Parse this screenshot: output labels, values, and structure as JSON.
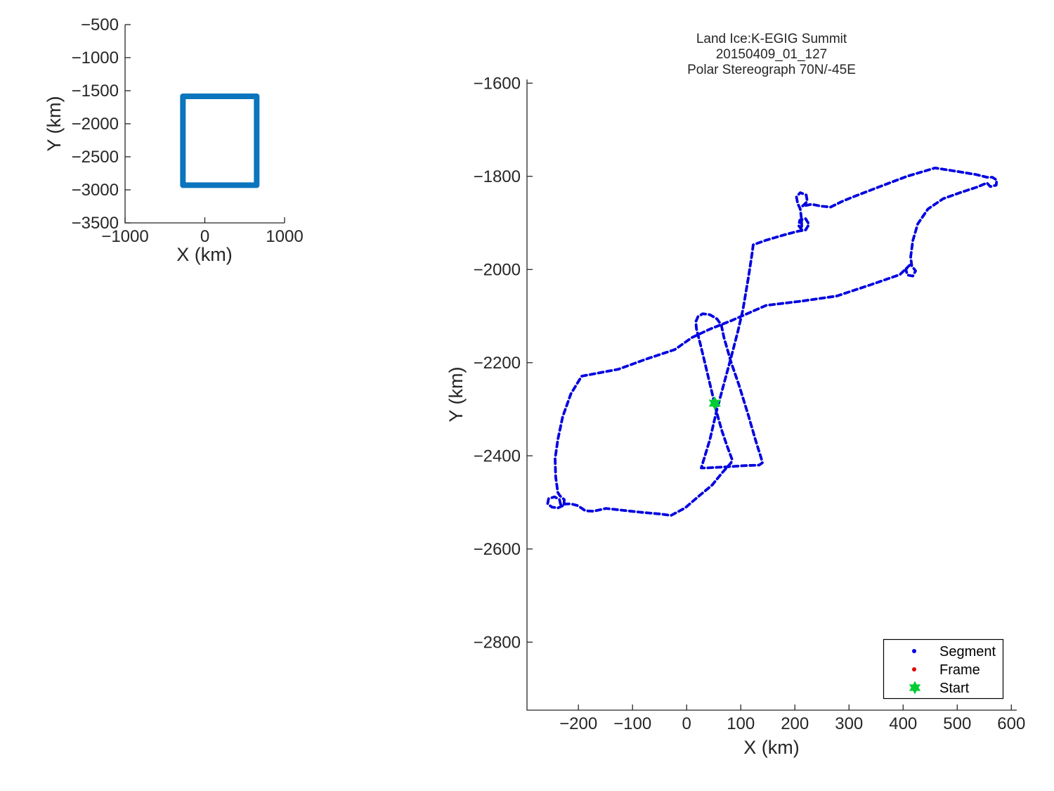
{
  "legend": {
    "position": "lower-right",
    "items": [
      {
        "label": "Segment",
        "marker": "dot",
        "color": "#0000E0"
      },
      {
        "label": "Frame",
        "marker": "dot",
        "color": "#E00000"
      },
      {
        "label": "Start",
        "marker": "hexagram",
        "color": "#00CC33"
      }
    ]
  },
  "chart_data": [
    {
      "id": "overview-map",
      "type": "line",
      "title": "",
      "xlabel": "X (km)",
      "ylabel": "Y (km)",
      "xlim": [
        -1000,
        1000
      ],
      "ylim": [
        -3500,
        -500
      ],
      "x_ticks": [
        -1000,
        0,
        1000
      ],
      "y_ticks": [
        -500,
        -1000,
        -1500,
        -2000,
        -2500,
        -3000,
        -3500
      ],
      "grid": false,
      "series": [
        {
          "name": "coverage-box",
          "color": "#0b75bd",
          "line_width": 8,
          "style": "solid",
          "closed": true,
          "points": [
            [
              -275,
              -1585
            ],
            [
              650,
              -1585
            ],
            [
              650,
              -2930
            ],
            [
              -275,
              -2930
            ]
          ]
        }
      ]
    },
    {
      "id": "flight-track",
      "type": "line",
      "title_lines": [
        "Land Ice:K-EGIG Summit",
        "20150409_01_127",
        "Polar Stereograph 70N/-45E"
      ],
      "xlabel": "X (km)",
      "ylabel": "Y (km)",
      "xlim": [
        -295,
        610
      ],
      "ylim": [
        -2946,
        -1592
      ],
      "x_ticks": [
        -200,
        -100,
        0,
        100,
        200,
        300,
        400,
        500,
        600
      ],
      "y_ticks": [
        -1600,
        -1800,
        -2000,
        -2200,
        -2400,
        -2600,
        -2800
      ],
      "grid": false,
      "series": [
        {
          "name": "Segment",
          "color": "#0000E0",
          "line_width": 3.8,
          "style": "dashed",
          "closed": false,
          "points": [
            [
              55,
              -2305
            ],
            [
              46,
              -2260
            ],
            [
              35,
              -2207
            ],
            [
              25,
              -2159
            ],
            [
              18,
              -2127
            ],
            [
              17,
              -2112
            ],
            [
              21,
              -2101
            ],
            [
              30,
              -2095
            ],
            [
              43,
              -2097
            ],
            [
              56,
              -2106
            ],
            [
              64,
              -2119
            ],
            [
              69,
              -2146
            ],
            [
              82,
              -2199
            ],
            [
              97,
              -2249
            ],
            [
              114,
              -2313
            ],
            [
              127,
              -2365
            ],
            [
              138,
              -2406
            ],
            [
              140,
              -2415
            ],
            [
              134,
              -2420
            ],
            [
              108,
              -2421
            ],
            [
              69,
              -2424
            ],
            [
              36,
              -2426
            ],
            [
              27,
              -2426
            ],
            [
              43,
              -2365
            ],
            [
              55,
              -2305
            ],
            [
              69,
              -2245
            ],
            [
              82,
              -2189
            ],
            [
              95,
              -2131
            ],
            [
              104,
              -2086
            ],
            [
              114,
              -2018
            ],
            [
              121,
              -1965
            ],
            [
              123,
              -1947
            ],
            [
              147,
              -1937
            ],
            [
              179,
              -1926
            ],
            [
              205,
              -1918
            ],
            [
              220,
              -1915
            ],
            [
              226,
              -1903
            ],
            [
              220,
              -1891
            ],
            [
              209,
              -1894
            ],
            [
              207,
              -1906
            ],
            [
              213,
              -1915
            ],
            [
              212,
              -1890
            ],
            [
              210,
              -1870
            ],
            [
              205,
              -1858
            ],
            [
              203,
              -1844
            ],
            [
              210,
              -1835
            ],
            [
              221,
              -1840
            ],
            [
              223,
              -1854
            ],
            [
              214,
              -1864
            ],
            [
              231,
              -1860
            ],
            [
              248,
              -1864
            ],
            [
              266,
              -1866
            ],
            [
              287,
              -1854
            ],
            [
              308,
              -1844
            ],
            [
              355,
              -1823
            ],
            [
              407,
              -1800
            ],
            [
              459,
              -1782
            ],
            [
              497,
              -1789
            ],
            [
              534,
              -1796
            ],
            [
              555,
              -1802
            ],
            [
              565,
              -1802
            ],
            [
              573,
              -1808
            ],
            [
              572,
              -1819
            ],
            [
              561,
              -1822
            ],
            [
              555,
              -1814
            ],
            [
              537,
              -1823
            ],
            [
              508,
              -1834
            ],
            [
              474,
              -1848
            ],
            [
              446,
              -1870
            ],
            [
              427,
              -1902
            ],
            [
              418,
              -1938
            ],
            [
              414,
              -1973
            ],
            [
              416,
              -1992
            ],
            [
              423,
              -2003
            ],
            [
              418,
              -2014
            ],
            [
              408,
              -2012
            ],
            [
              405,
              -2000
            ],
            [
              412,
              -1991
            ],
            [
              394,
              -2011
            ],
            [
              342,
              -2032
            ],
            [
              277,
              -2057
            ],
            [
              212,
              -2068
            ],
            [
              147,
              -2077
            ],
            [
              82,
              -2110
            ],
            [
              43,
              -2128
            ],
            [
              10,
              -2146
            ],
            [
              -22,
              -2172
            ],
            [
              -74,
              -2192
            ],
            [
              -126,
              -2214
            ],
            [
              -194,
              -2229
            ],
            [
              -214,
              -2267
            ],
            [
              -229,
              -2316
            ],
            [
              -238,
              -2365
            ],
            [
              -243,
              -2406
            ],
            [
              -242,
              -2445
            ],
            [
              -238,
              -2479
            ],
            [
              -234,
              -2486
            ],
            [
              -226,
              -2494
            ],
            [
              -227,
              -2506
            ],
            [
              -238,
              -2512
            ],
            [
              -249,
              -2510
            ],
            [
              -257,
              -2503
            ],
            [
              -255,
              -2492
            ],
            [
              -244,
              -2488
            ],
            [
              -235,
              -2494
            ],
            [
              -233,
              -2504
            ],
            [
              -214,
              -2503
            ],
            [
              -201,
              -2507
            ],
            [
              -187,
              -2518
            ],
            [
              -172,
              -2519
            ],
            [
              -149,
              -2513
            ],
            [
              -126,
              -2516
            ],
            [
              -87,
              -2521
            ],
            [
              -48,
              -2525
            ],
            [
              -29,
              -2528
            ],
            [
              -3,
              -2512
            ],
            [
              23,
              -2486
            ],
            [
              47,
              -2463
            ],
            [
              66,
              -2436
            ],
            [
              82,
              -2415
            ],
            [
              84,
              -2408
            ],
            [
              75,
              -2380
            ],
            [
              65,
              -2346
            ],
            [
              55,
              -2305
            ]
          ]
        },
        {
          "name": "Start",
          "color": "#00CC33",
          "marker": "hexagram",
          "points": [
            [
              52,
              -2287
            ]
          ]
        }
      ]
    }
  ]
}
